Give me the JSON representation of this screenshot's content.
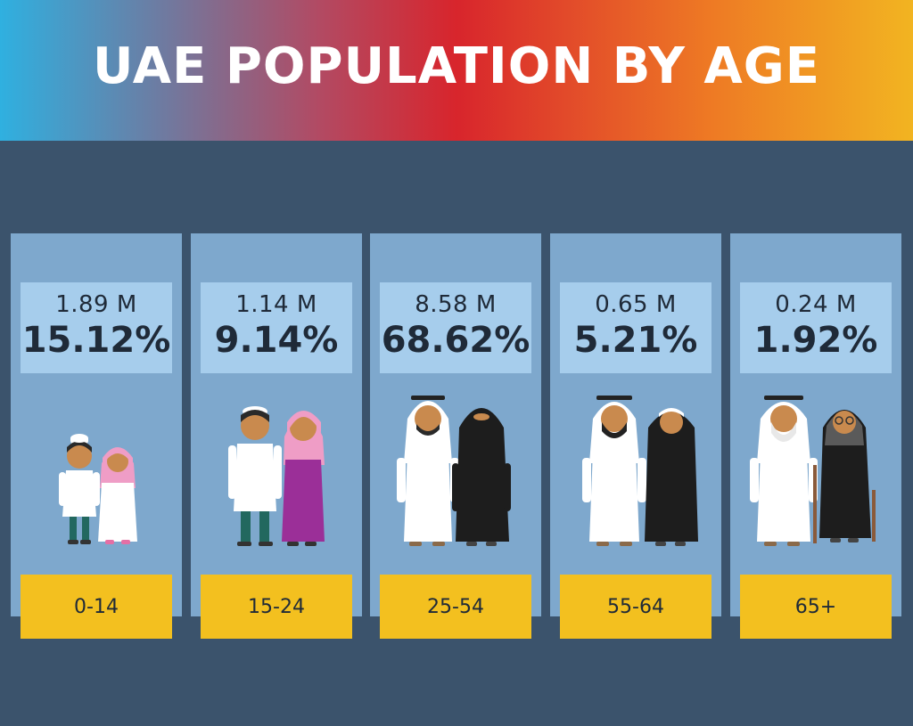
{
  "title": "UAE POPULATION BY AGE",
  "chart_data": {
    "type": "table",
    "title": "UAE POPULATION BY AGE",
    "categories": [
      "0-14",
      "15-24",
      "25-54",
      "55-64",
      "65+"
    ],
    "series": [
      {
        "values": [
          1.89,
          1.14,
          8.58,
          0.65,
          0.24
        ]
      },
      {
        "values": [
          15.12,
          9.14,
          68.62,
          5.21,
          1.92
        ]
      }
    ],
    "columns": [
      {
        "count": "1.89 M",
        "percent": "15.12%",
        "age": "0-14"
      },
      {
        "count": "1.14 M",
        "percent": "9.14%",
        "age": "15-24"
      },
      {
        "count": "8.58 M",
        "percent": "68.62%",
        "age": "25-54"
      },
      {
        "count": "0.65 M",
        "percent": "5.21%",
        "age": "55-64"
      },
      {
        "count": "0.24 M",
        "percent": "1.92%",
        "age": "65+"
      }
    ]
  },
  "colors": {
    "background": "#3b536c",
    "panel": "#7ea8cd",
    "stat_box": "#a6cdec",
    "age_box": "#f3c01f",
    "text": "#1f2a38"
  },
  "icons": [
    "child-figures-icon",
    "youth-figures-icon",
    "adult-figures-icon",
    "middle-aged-figures-icon",
    "elderly-figures-icon"
  ]
}
